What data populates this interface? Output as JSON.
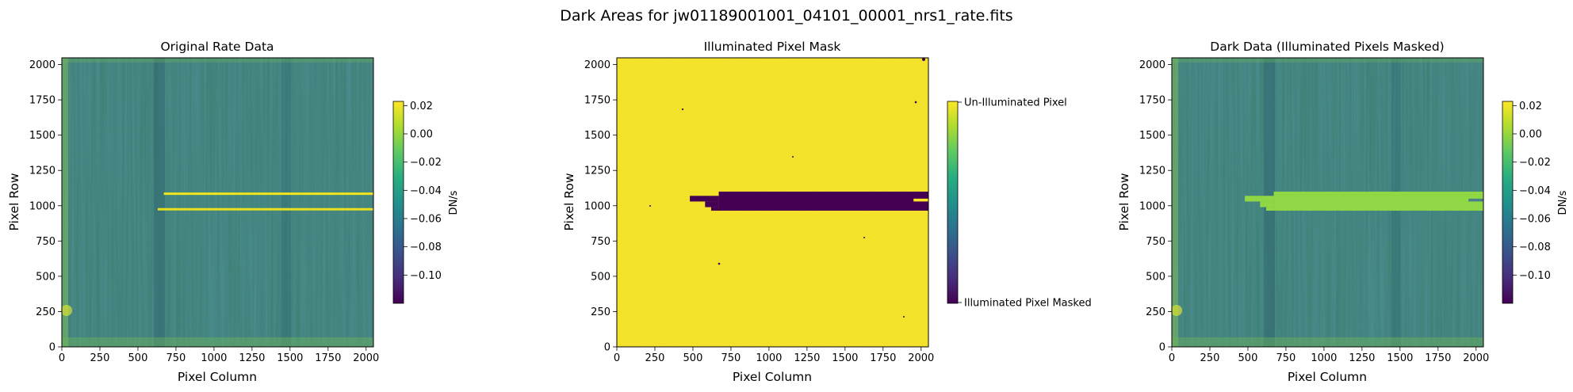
{
  "figure": {
    "title": "Dark Areas for jw01189001001_04101_00001_nrs1_rate.fits"
  },
  "panels": [
    {
      "title": "Original Rate Data",
      "xlabel": "Pixel Column",
      "ylabel": "Pixel Row",
      "colorbar": {
        "label": "DN/s",
        "ticks": [
          "0.02",
          "0.00",
          "−0.02",
          "−0.04",
          "−0.06",
          "−0.08",
          "−0.10"
        ]
      }
    },
    {
      "title": "Illuminated Pixel Mask",
      "xlabel": "Pixel Column",
      "ylabel": "Pixel Row",
      "colorbar": {
        "label": "",
        "ticks": [
          "Un-Illuminated Pixel",
          "Illuminated Pixel Masked"
        ]
      }
    },
    {
      "title": "Dark Data (Illuminated Pixels Masked)",
      "xlabel": "Pixel Column",
      "ylabel": "Pixel Row",
      "colorbar": {
        "label": "DN/s",
        "ticks": [
          "0.02",
          "0.00",
          "−0.02",
          "−0.04",
          "−0.06",
          "−0.08",
          "−0.10"
        ]
      }
    }
  ],
  "chart_data": [
    {
      "type": "heatmap",
      "title": "Original Rate Data",
      "xlabel": "Pixel Column",
      "ylabel": "Pixel Row",
      "xlim": [
        0,
        2048
      ],
      "ylim": [
        0,
        2048
      ],
      "xticks": [
        0,
        250,
        500,
        750,
        1000,
        1250,
        1500,
        1750,
        2000
      ],
      "yticks": [
        0,
        250,
        500,
        750,
        1000,
        1250,
        1500,
        1750,
        2000
      ],
      "colormap": "viridis",
      "colorbar": {
        "label": "DN/s",
        "vmin": -0.12,
        "vmax": 0.023,
        "ticks": [
          0.02,
          0.0,
          -0.02,
          -0.04,
          -0.06,
          -0.08,
          -0.1
        ]
      },
      "features": [
        {
          "kind": "bright-trace",
          "x_range": [
            670,
            2048
          ],
          "y": 1085
        },
        {
          "kind": "bright-trace",
          "x_range": [
            630,
            2048
          ],
          "y": 975
        }
      ]
    },
    {
      "type": "heatmap",
      "title": "Illuminated Pixel Mask",
      "xlabel": "Pixel Column",
      "ylabel": "Pixel Row",
      "xlim": [
        0,
        2048
      ],
      "ylim": [
        0,
        2048
      ],
      "xticks": [
        0,
        250,
        500,
        750,
        1000,
        1250,
        1500,
        1750,
        2000
      ],
      "yticks": [
        0,
        250,
        500,
        750,
        1000,
        1250,
        1500,
        1750,
        2000
      ],
      "colormap": "viridis",
      "colorbar": {
        "ticks": [
          "Un-Illuminated Pixel",
          "Illuminated Pixel Masked"
        ]
      },
      "mask_region": [
        {
          "x": [
            670,
            2048
          ],
          "y": [
            965,
            1100
          ]
        },
        {
          "x": [
            480,
            670
          ],
          "y": [
            1030,
            1070
          ]
        },
        {
          "x": [
            580,
            670
          ],
          "y": [
            990,
            1030
          ]
        },
        {
          "x": [
            620,
            670
          ],
          "y": [
            965,
            990
          ]
        }
      ],
      "unmasked_notch": {
        "x": [
          1950,
          2048
        ],
        "y": [
          1030,
          1050
        ]
      }
    },
    {
      "type": "heatmap",
      "title": "Dark Data (Illuminated Pixels Masked)",
      "xlabel": "Pixel Column",
      "ylabel": "Pixel Row",
      "xlim": [
        0,
        2048
      ],
      "ylim": [
        0,
        2048
      ],
      "xticks": [
        0,
        250,
        500,
        750,
        1000,
        1250,
        1500,
        1750,
        2000
      ],
      "yticks": [
        0,
        250,
        500,
        750,
        1000,
        1250,
        1500,
        1750,
        2000
      ],
      "colormap": "viridis",
      "colorbar": {
        "label": "DN/s",
        "vmin": -0.12,
        "vmax": 0.023,
        "ticks": [
          0.02,
          0.0,
          -0.02,
          -0.04,
          -0.06,
          -0.08,
          -0.1
        ]
      },
      "masked_fill_color": "#8fd744"
    }
  ]
}
